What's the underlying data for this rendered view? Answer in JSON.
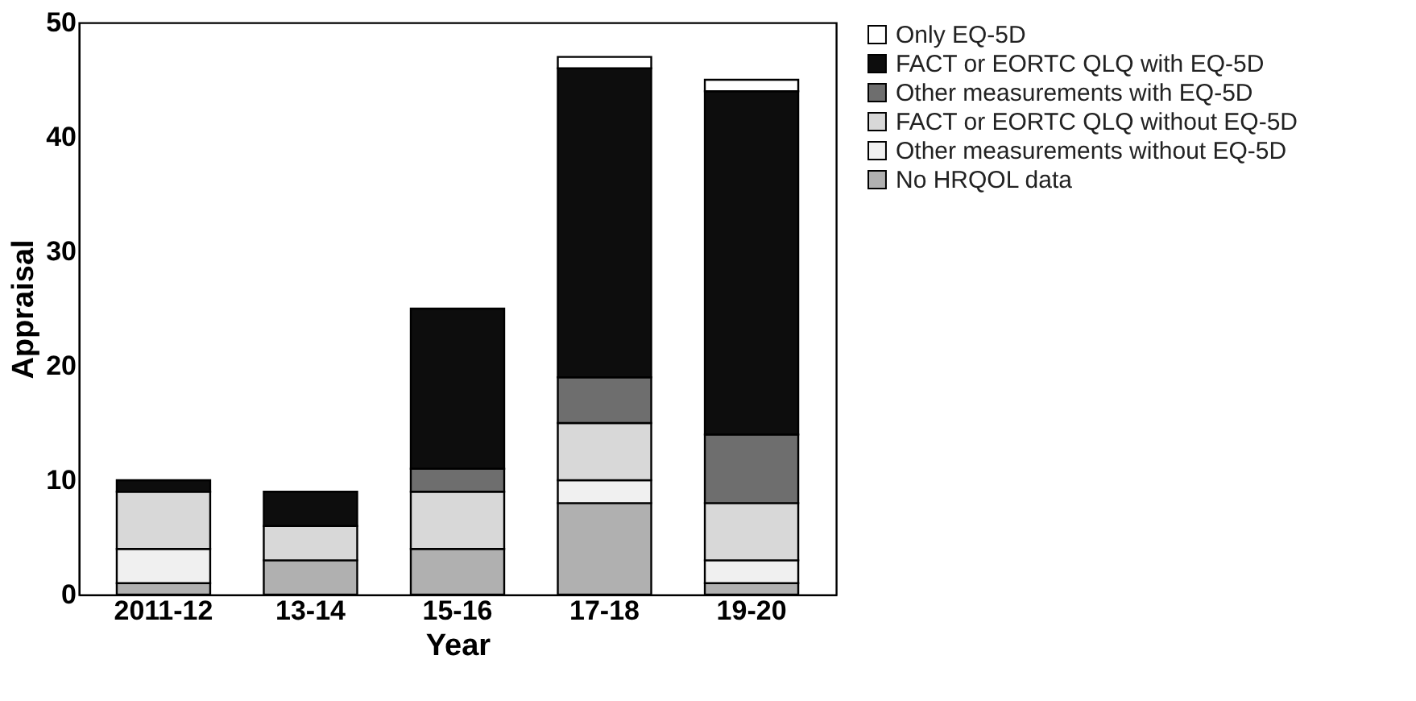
{
  "chart_data": {
    "type": "bar",
    "stacked": true,
    "xlabel": "Year",
    "ylabel": "Appraisal",
    "categories": [
      "2011-12",
      "13-14",
      "15-16",
      "17-18",
      "19-20"
    ],
    "series": [
      {
        "name": "No HRQOL data",
        "color": "#b0b0b0",
        "values": [
          1,
          3,
          4,
          8,
          1
        ]
      },
      {
        "name": "Other measurements without EQ-5D",
        "color": "#f0f0f0",
        "values": [
          3,
          0,
          0,
          2,
          2
        ]
      },
      {
        "name": "FACT or EORTC QLQ without EQ-5D",
        "color": "#d8d8d8",
        "values": [
          5,
          3,
          5,
          5,
          5
        ]
      },
      {
        "name": "Other measurements with EQ-5D",
        "color": "#6e6e6e",
        "values": [
          0,
          0,
          2,
          4,
          6
        ]
      },
      {
        "name": "FACT or EORTC QLQ with EQ-5D",
        "color": "#0d0d0d",
        "values": [
          1,
          3,
          14,
          27,
          30
        ]
      },
      {
        "name": "Only EQ-5D",
        "color": "#ffffff",
        "values": [
          0,
          0,
          0,
          1,
          1
        ]
      }
    ],
    "ylim": [
      0,
      50
    ],
    "yticks": [
      0,
      10,
      20,
      30,
      40,
      50
    ],
    "grid": false,
    "legend": "right"
  }
}
